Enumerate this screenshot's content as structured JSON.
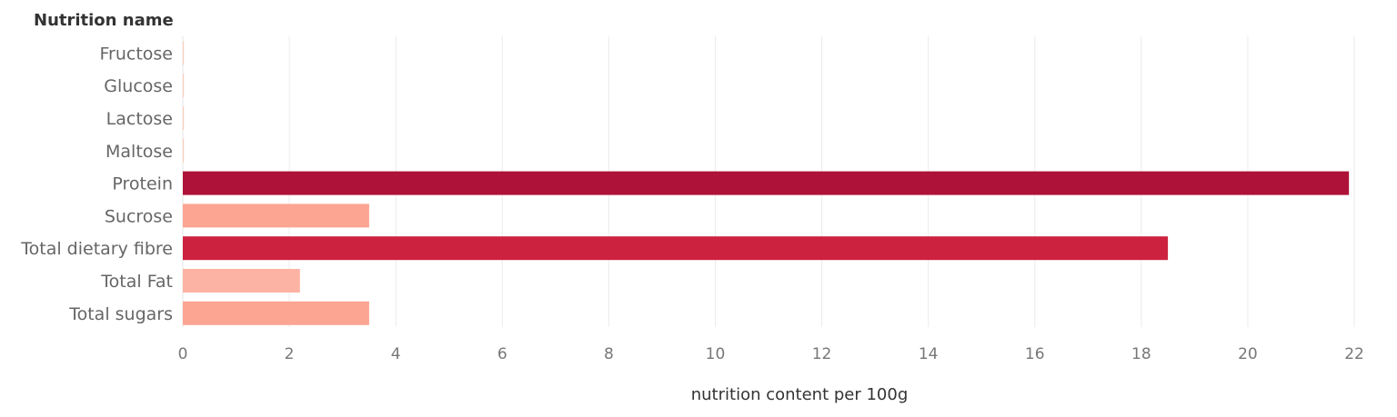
{
  "chart_data": {
    "type": "bar",
    "orientation": "horizontal",
    "row_header": "Nutrition name",
    "xlabel": "nutrition content per 100g",
    "xlim": [
      0,
      22.7
    ],
    "x_ticks": [
      "0",
      "2",
      "4",
      "6",
      "8",
      "10",
      "12",
      "14",
      "16",
      "18",
      "20",
      "22"
    ],
    "grid": true,
    "categories": [
      "Fructose",
      "Glucose",
      "Lactose",
      "Maltose",
      "Protein",
      "Sucrose",
      "Total dietary fibre",
      "Total Fat",
      "Total sugars"
    ],
    "values": [
      0,
      0,
      0,
      0,
      21.9,
      3.5,
      18.5,
      2.2,
      3.5
    ],
    "colors": [
      "#fbd0c0",
      "#fbd0c0",
      "#fbd0c0",
      "#fbd0c0",
      "#ae1238",
      "#fca592",
      "#cc2240",
      "#fdb3a3",
      "#fca592"
    ]
  }
}
